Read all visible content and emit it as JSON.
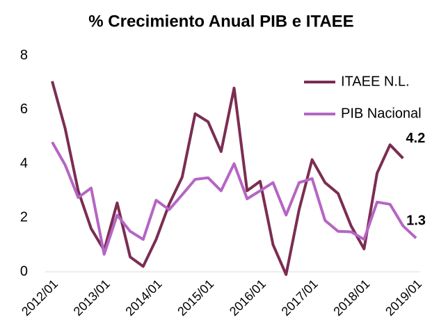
{
  "chart_data": {
    "type": "line",
    "title": "% Crecimiento Anual PIB e ITAEE",
    "categories": [
      "2012/01",
      null,
      null,
      null,
      "2013/01",
      null,
      null,
      null,
      "2014/01",
      null,
      null,
      null,
      "2015/01",
      null,
      null,
      null,
      "2016/01",
      null,
      null,
      null,
      "2017/01",
      null,
      null,
      null,
      "2018/01",
      null,
      null,
      null,
      "2019/01"
    ],
    "series": [
      {
        "name": "ITAEE N.L.",
        "color": "#7b2d52",
        "values": [
          7.05,
          5.3,
          3.0,
          1.6,
          0.8,
          2.55,
          0.55,
          0.2,
          1.2,
          2.5,
          3.5,
          5.85,
          5.55,
          4.45,
          6.8,
          3.0,
          3.35,
          1.0,
          -0.1,
          2.3,
          4.15,
          3.3,
          2.9,
          1.7,
          0.85,
          3.65,
          4.7,
          4.2,
          null
        ]
      },
      {
        "name": "PIB Nacional",
        "color": "#b565c4",
        "values": [
          4.8,
          3.95,
          2.75,
          3.1,
          0.65,
          2.1,
          1.5,
          1.2,
          2.65,
          2.3,
          2.85,
          3.42,
          3.48,
          3.0,
          4.0,
          2.7,
          3.0,
          3.3,
          2.1,
          3.3,
          3.45,
          1.9,
          1.5,
          1.48,
          1.2,
          2.58,
          2.5,
          1.7,
          1.25
        ]
      }
    ],
    "annotations": [
      "4.2",
      "1.3"
    ],
    "ylim": [
      0,
      8
    ],
    "yticks": [
      0,
      2,
      4,
      6,
      8
    ],
    "grid": false,
    "legend": "upper right"
  }
}
